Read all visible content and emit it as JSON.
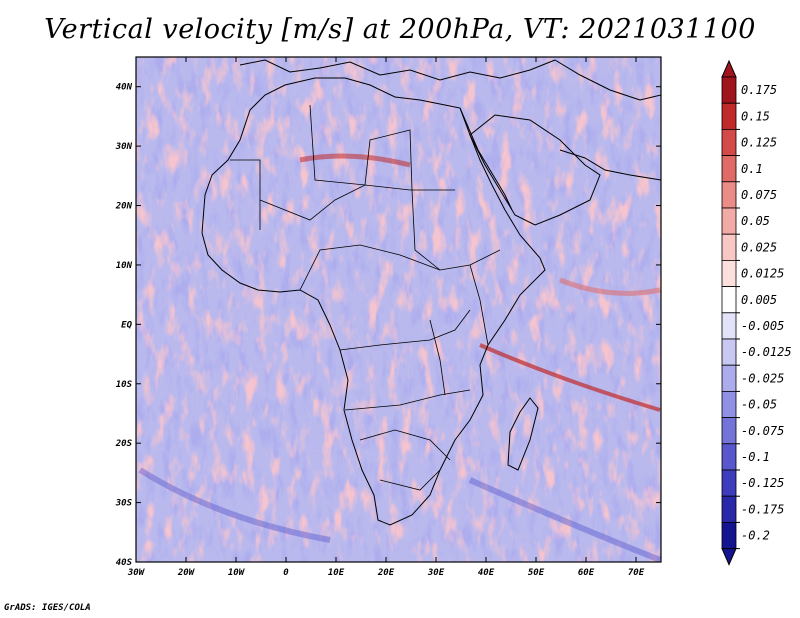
{
  "title": "Vertical velocity [m/s] at 200hPa, VT: 2021031100",
  "credit": "GrADS: IGES/COLA",
  "map": {
    "lon_range": [
      -30,
      75
    ],
    "lat_range": [
      -40,
      45
    ],
    "lon_ticks": [
      {
        "value": -30,
        "label": "30W"
      },
      {
        "value": -20,
        "label": "20W"
      },
      {
        "value": -10,
        "label": "10W"
      },
      {
        "value": 0,
        "label": "0"
      },
      {
        "value": 10,
        "label": "10E"
      },
      {
        "value": 20,
        "label": "20E"
      },
      {
        "value": 30,
        "label": "30E"
      },
      {
        "value": 40,
        "label": "40E"
      },
      {
        "value": 50,
        "label": "50E"
      },
      {
        "value": 60,
        "label": "60E"
      },
      {
        "value": 70,
        "label": "70E"
      }
    ],
    "lat_ticks": [
      {
        "value": 40,
        "label": "40N"
      },
      {
        "value": 30,
        "label": "30N"
      },
      {
        "value": 20,
        "label": "20N"
      },
      {
        "value": 10,
        "label": "10N"
      },
      {
        "value": 0,
        "label": "EQ"
      },
      {
        "value": -10,
        "label": "10S"
      },
      {
        "value": -20,
        "label": "20S"
      },
      {
        "value": -30,
        "label": "30S"
      },
      {
        "value": -40,
        "label": "40S"
      }
    ]
  },
  "colorbar": {
    "levels": [
      {
        "label": "0.175",
        "color": "#a0141e"
      },
      {
        "label": "0.15",
        "color": "#c02a2a"
      },
      {
        "label": "0.125",
        "color": "#d44a48"
      },
      {
        "label": "0.1",
        "color": "#e06a66"
      },
      {
        "label": "0.075",
        "color": "#ea8c88"
      },
      {
        "label": "0.05",
        "color": "#f2aaa6"
      },
      {
        "label": "0.025",
        "color": "#f8c8c4"
      },
      {
        "label": "0.0125",
        "color": "#fbe0dd"
      },
      {
        "label": "0.005",
        "color": "#ffffff"
      },
      {
        "label": "-0.005",
        "color": "#e2e2f8"
      },
      {
        "label": "-0.0125",
        "color": "#c8c8f2"
      },
      {
        "label": "-0.025",
        "color": "#acacec"
      },
      {
        "label": "-0.05",
        "color": "#9090e4"
      },
      {
        "label": "-0.075",
        "color": "#7474d8"
      },
      {
        "label": "-0.1",
        "color": "#5858cc"
      },
      {
        "label": "-0.125",
        "color": "#3c3cbc"
      },
      {
        "label": "-0.175",
        "color": "#2828a8"
      },
      {
        "label": "-0.2",
        "color": "#141490"
      }
    ],
    "bottom_color": "#141490"
  }
}
